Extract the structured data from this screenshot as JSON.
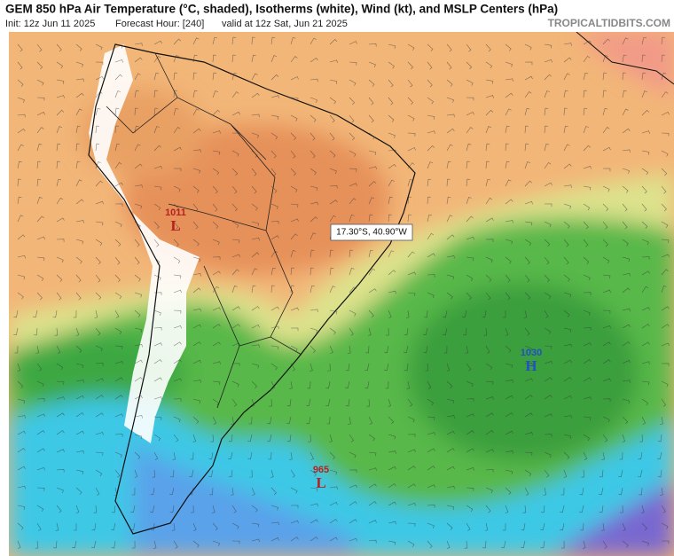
{
  "header": {
    "title": "GEM 850 hPa Air Temperature (°C, shaded), Isotherms (white), Wind (kt), and MSLP Centers (hPa)",
    "init": "Init: 12z Jun 11 2025",
    "forecast_hour": "Forecast Hour: [240]",
    "valid": "valid at 12z Sat, Jun 21 2025",
    "site": "TROPICALTIDBITS.COM"
  },
  "map": {
    "tooltip": "17.30°S, 40.90°W",
    "centers": [
      {
        "value": "1011",
        "letter": "L"
      },
      {
        "value": "1030",
        "letter": "H"
      },
      {
        "value": "965",
        "letter": "L"
      }
    ]
  }
}
